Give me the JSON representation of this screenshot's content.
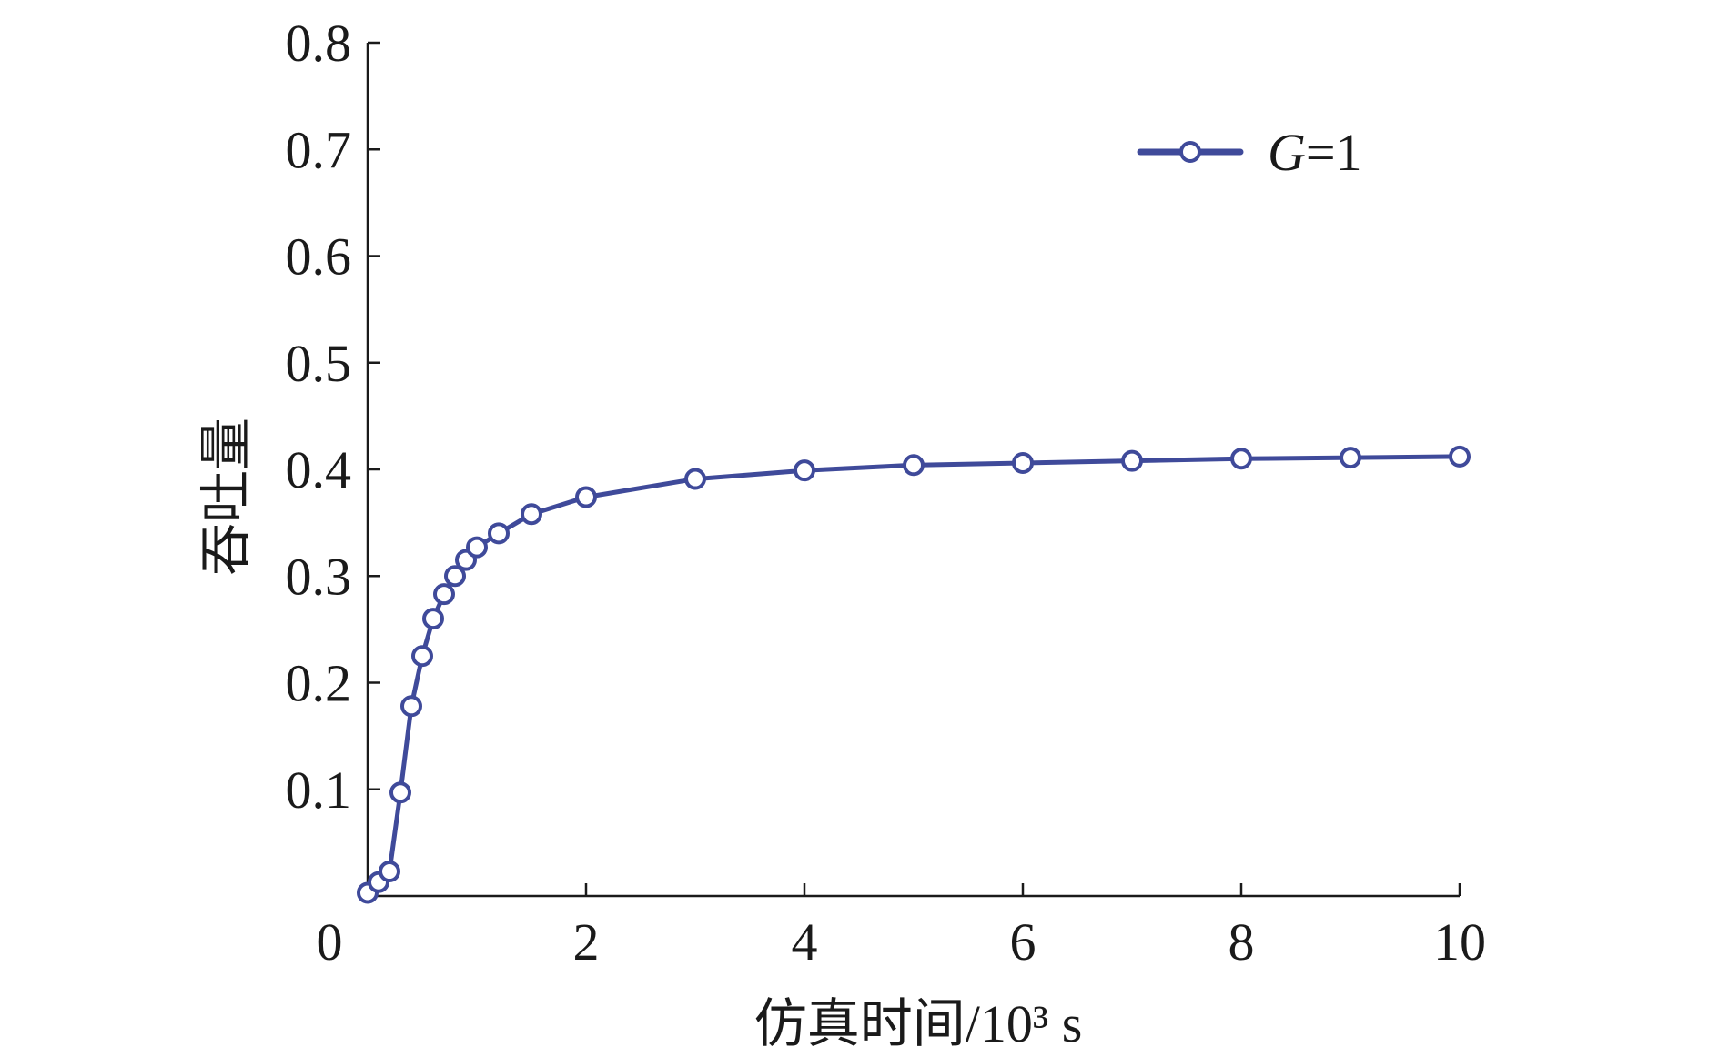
{
  "chart_data": {
    "type": "line",
    "xlabel": "仿真时间/10³ s",
    "ylabel": "吞吐量",
    "xlim": [
      0,
      10
    ],
    "ylim": [
      0,
      0.8
    ],
    "xticks": [
      0,
      2,
      4,
      6,
      8,
      10
    ],
    "xtick_labels": [
      "0",
      "2",
      "4",
      "6",
      "8",
      "10"
    ],
    "yticks": [
      0.1,
      0.2,
      0.3,
      0.4,
      0.5,
      0.6,
      0.7,
      0.8
    ],
    "ytick_labels": [
      "0.1",
      "0.2",
      "0.3",
      "0.4",
      "0.5",
      "0.6",
      "0.7",
      "0.8"
    ],
    "grid": false,
    "legend_position": "top-right",
    "series": [
      {
        "name": "G=1",
        "legend_label": {
          "italic": "G",
          "rest": "=1"
        },
        "color": "#3f4a9a",
        "marker": "circle",
        "x": [
          0.0,
          0.1,
          0.2,
          0.3,
          0.4,
          0.5,
          0.6,
          0.7,
          0.8,
          0.9,
          1.0,
          1.2,
          1.5,
          2,
          3,
          4,
          5,
          6,
          7,
          8,
          9,
          10
        ],
        "y": [
          0.003,
          0.013,
          0.023,
          0.097,
          0.178,
          0.225,
          0.26,
          0.283,
          0.3,
          0.315,
          0.327,
          0.34,
          0.358,
          0.374,
          0.391,
          0.399,
          0.404,
          0.406,
          0.408,
          0.41,
          0.411,
          0.412
        ]
      }
    ]
  }
}
